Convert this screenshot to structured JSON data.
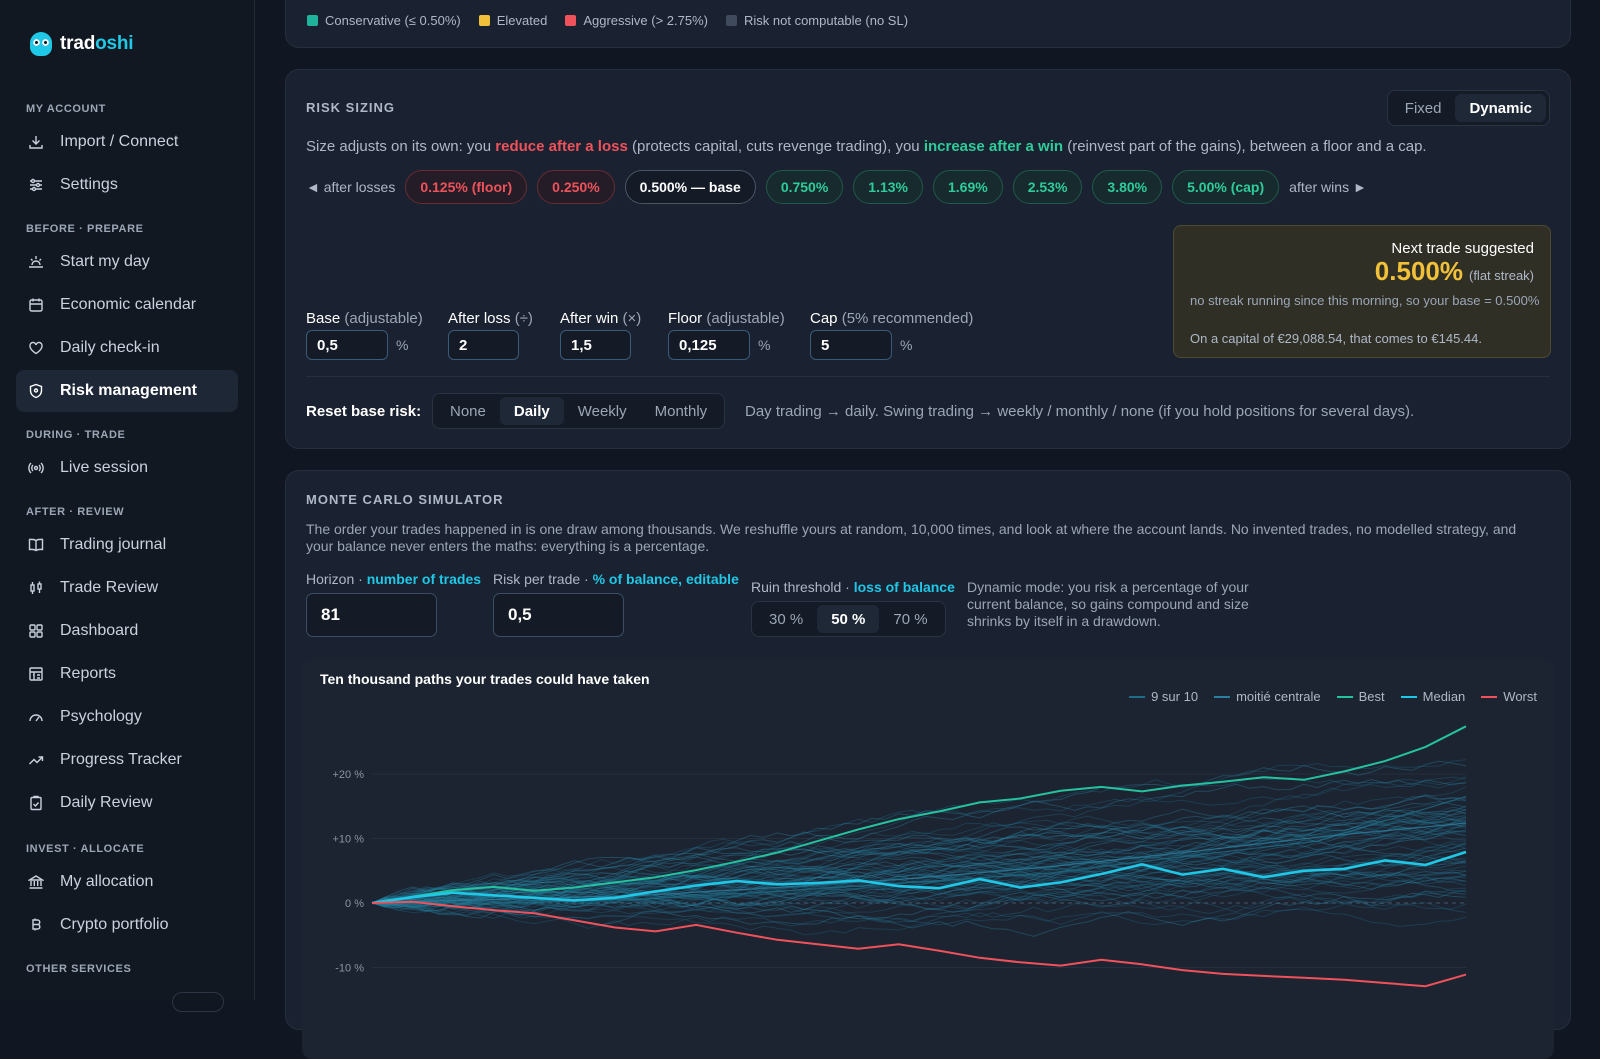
{
  "brand": {
    "name_a": "trad",
    "name_b": "oshi"
  },
  "sidebar": {
    "sections": [
      {
        "title": "MY ACCOUNT",
        "items": [
          {
            "label": "Import / Connect",
            "icon": "download-icon"
          },
          {
            "label": "Settings",
            "icon": "sliders-icon"
          }
        ]
      },
      {
        "title": "BEFORE · PREPARE",
        "items": [
          {
            "label": "Start my day",
            "icon": "sunrise-icon"
          },
          {
            "label": "Economic calendar",
            "icon": "calendar-icon"
          },
          {
            "label": "Daily check-in",
            "icon": "heart-icon"
          },
          {
            "label": "Risk management",
            "icon": "shield-icon",
            "active": true
          }
        ]
      },
      {
        "title": "DURING · TRADE",
        "items": [
          {
            "label": "Live session",
            "icon": "broadcast-icon"
          }
        ]
      },
      {
        "title": "AFTER · REVIEW",
        "items": [
          {
            "label": "Trading journal",
            "icon": "book-icon"
          },
          {
            "label": "Trade Review",
            "icon": "candles-icon"
          },
          {
            "label": "Dashboard",
            "icon": "grid-icon"
          },
          {
            "label": "Reports",
            "icon": "table-icon"
          },
          {
            "label": "Psychology",
            "icon": "gauge-icon"
          },
          {
            "label": "Progress Tracker",
            "icon": "trend-icon"
          },
          {
            "label": "Daily Review",
            "icon": "clipboard-icon"
          }
        ]
      },
      {
        "title": "INVEST · ALLOCATE",
        "items": [
          {
            "label": "My allocation",
            "icon": "bank-icon"
          },
          {
            "label": "Crypto portfolio",
            "icon": "bitcoin-icon"
          }
        ]
      },
      {
        "title": "OTHER SERVICES",
        "items": []
      }
    ]
  },
  "risk_legend": [
    {
      "label": "Conservative (≤ 0.50%)",
      "color": "#20b39c"
    },
    {
      "label": "Elevated",
      "color": "#f2c13a"
    },
    {
      "label": "Aggressive (> 2.75%)",
      "color": "#f0525b"
    },
    {
      "label": "Risk not computable (no SL)",
      "color": "#3f4a5c"
    }
  ],
  "sizing": {
    "title": "RISK SIZING",
    "mode_options": [
      "Fixed",
      "Dynamic"
    ],
    "mode_selected": "Dynamic",
    "desc": {
      "a": "Size adjusts on its own: you ",
      "b": "reduce after a loss",
      "c": " (protects capital, cuts revenge trading), you ",
      "d": "increase after a win",
      "e": " (reinvest part of the gains), between a floor and a cap."
    },
    "ladder_left": "◄ after losses",
    "ladder_right": "after wins ►",
    "ladder": [
      {
        "label": "0.125% (floor)",
        "kind": "red"
      },
      {
        "label": "0.250%",
        "kind": "red"
      },
      {
        "label": "0.500% — base",
        "kind": "base"
      },
      {
        "label": "0.750%",
        "kind": "grn"
      },
      {
        "label": "1.13%",
        "kind": "grn"
      },
      {
        "label": "1.69%",
        "kind": "grn"
      },
      {
        "label": "2.53%",
        "kind": "grn"
      },
      {
        "label": "3.80%",
        "kind": "grn"
      },
      {
        "label": "5.00% (cap)",
        "kind": "grn"
      }
    ],
    "suggest": {
      "heading": "Next trade suggested",
      "value": "0.500%",
      "tag": "(flat streak)",
      "note": "no streak running since this morning, so your base = 0.500%",
      "capital": "On a capital of €29,088.54, that comes to €145.44."
    },
    "fields": [
      {
        "label": "Base",
        "hint": " (adjustable)",
        "value": "0,5",
        "unit": "%"
      },
      {
        "label": "After loss",
        "hint": " (÷)",
        "value": "2",
        "unit": ""
      },
      {
        "label": "After win",
        "hint": " (×)",
        "value": "1,5",
        "unit": ""
      },
      {
        "label": "Floor",
        "hint": " (adjustable)",
        "value": "0,125",
        "unit": "%"
      },
      {
        "label": "Cap",
        "hint": " (5% recommended)",
        "value": "5",
        "unit": "%"
      }
    ],
    "reset_label": "Reset base risk:",
    "reset_options": [
      "None",
      "Daily",
      "Weekly",
      "Monthly"
    ],
    "reset_selected": "Daily",
    "reset_help": "Day trading → daily. Swing trading → weekly / monthly / none (if you hold positions for several days)."
  },
  "monte_carlo": {
    "title": "MONTE CARLO SIMULATOR",
    "desc": "The order your trades happened in is one draw among thousands. We reshuffle yours at random, 10,000 times, and look at where the account lands. No invented trades, no modelled strategy, and your balance never enters the maths: everything is a percentage.",
    "horizon_label": "Horizon · ",
    "horizon_hint": "number of trades",
    "horizon_value": "81",
    "risk_label": "Risk per trade · ",
    "risk_hint": "% of balance, editable",
    "risk_value": "0,5",
    "ruin_label": "Ruin threshold · ",
    "ruin_hint": "loss of balance",
    "ruin_options": [
      "30 %",
      "50 %",
      "70 %"
    ],
    "ruin_selected": "50 %",
    "note": "Dynamic mode: you risk a percentage of your current balance, so gains compound and size shrinks by itself in a drawdown.",
    "chart_title": "Ten thousand paths your trades could have taken"
  },
  "chart_data": {
    "type": "line",
    "title": "Ten thousand paths your trades could have taken",
    "x": "trade number",
    "xlim": [
      0,
      81
    ],
    "ylim": [
      -12,
      30
    ],
    "yticks": [
      "+20 %",
      "+10 %",
      "0 %",
      "-10 %"
    ],
    "ytick_values": [
      20,
      10,
      0,
      -10
    ],
    "series": [
      {
        "name": "9 sur 10",
        "color": "#1d6d86",
        "points": [
          [
            0,
            0
          ],
          [
            10,
            0
          ],
          [
            20,
            0.6
          ],
          [
            30,
            1.8
          ],
          [
            40,
            3.2
          ],
          [
            50,
            4.6
          ],
          [
            60,
            7.2
          ],
          [
            70,
            9.6
          ],
          [
            81,
            16.5
          ]
        ]
      },
      {
        "name": "moitié centrale",
        "color": "#2a7fa0",
        "points": [
          [
            0,
            0
          ],
          [
            10,
            0.6
          ],
          [
            20,
            1.2
          ],
          [
            30,
            2.4
          ],
          [
            40,
            3.8
          ],
          [
            50,
            5.6
          ],
          [
            60,
            7.8
          ],
          [
            70,
            10.2
          ],
          [
            81,
            12.4
          ]
        ]
      },
      {
        "name": "Best",
        "color": "#25c2a0",
        "points": [
          [
            0,
            0
          ],
          [
            3,
            1
          ],
          [
            6,
            2
          ],
          [
            9,
            2.5
          ],
          [
            12,
            1.9
          ],
          [
            15,
            2.4
          ],
          [
            18,
            3.2
          ],
          [
            21,
            4.0
          ],
          [
            24,
            5.1
          ],
          [
            27,
            6.4
          ],
          [
            30,
            7.8
          ],
          [
            33,
            9.6
          ],
          [
            36,
            11.4
          ],
          [
            39,
            13.0
          ],
          [
            42,
            14.2
          ],
          [
            45,
            15.6
          ],
          [
            48,
            16.2
          ],
          [
            51,
            17.4
          ],
          [
            54,
            18.0
          ],
          [
            57,
            17.3
          ],
          [
            60,
            18.2
          ],
          [
            63,
            18.8
          ],
          [
            66,
            19.5
          ],
          [
            69,
            19.1
          ],
          [
            72,
            20.4
          ],
          [
            75,
            22.0
          ],
          [
            78,
            24.2
          ],
          [
            81,
            27.4
          ]
        ]
      },
      {
        "name": "Median",
        "color": "#1fc8e6",
        "points": [
          [
            0,
            0
          ],
          [
            3,
            0.9
          ],
          [
            6,
            1.6
          ],
          [
            9,
            1.2
          ],
          [
            12,
            0.8
          ],
          [
            15,
            0.4
          ],
          [
            18,
            0.8
          ],
          [
            21,
            1.8
          ],
          [
            24,
            2.7
          ],
          [
            27,
            3.4
          ],
          [
            30,
            2.9
          ],
          [
            33,
            3.1
          ],
          [
            36,
            3.5
          ],
          [
            39,
            2.6
          ],
          [
            42,
            2.3
          ],
          [
            45,
            3.7
          ],
          [
            48,
            2.4
          ],
          [
            51,
            3.2
          ],
          [
            54,
            4.5
          ],
          [
            57,
            6.0
          ],
          [
            60,
            4.4
          ],
          [
            63,
            5.3
          ],
          [
            66,
            4.0
          ],
          [
            69,
            5.0
          ],
          [
            72,
            5.3
          ],
          [
            75,
            6.6
          ],
          [
            78,
            5.9
          ],
          [
            81,
            7.9
          ]
        ]
      },
      {
        "name": "Worst",
        "color": "#f0525b",
        "points": [
          [
            0,
            0
          ],
          [
            3,
            0.2
          ],
          [
            6,
            -0.5
          ],
          [
            9,
            -1.1
          ],
          [
            12,
            -1.6
          ],
          [
            15,
            -2.7
          ],
          [
            18,
            -3.8
          ],
          [
            21,
            -4.4
          ],
          [
            24,
            -3.4
          ],
          [
            27,
            -4.6
          ],
          [
            30,
            -5.7
          ],
          [
            33,
            -6.4
          ],
          [
            36,
            -7.1
          ],
          [
            39,
            -6.4
          ],
          [
            42,
            -7.4
          ],
          [
            45,
            -8.5
          ],
          [
            48,
            -9.2
          ],
          [
            51,
            -9.7
          ],
          [
            54,
            -8.8
          ],
          [
            57,
            -9.5
          ],
          [
            60,
            -10.4
          ],
          [
            63,
            -11.0
          ],
          [
            66,
            -11.3
          ],
          [
            69,
            -11.6
          ],
          [
            72,
            -11.9
          ],
          [
            75,
            -12.4
          ],
          [
            78,
            -12.9
          ],
          [
            81,
            -11.1
          ]
        ]
      }
    ]
  }
}
